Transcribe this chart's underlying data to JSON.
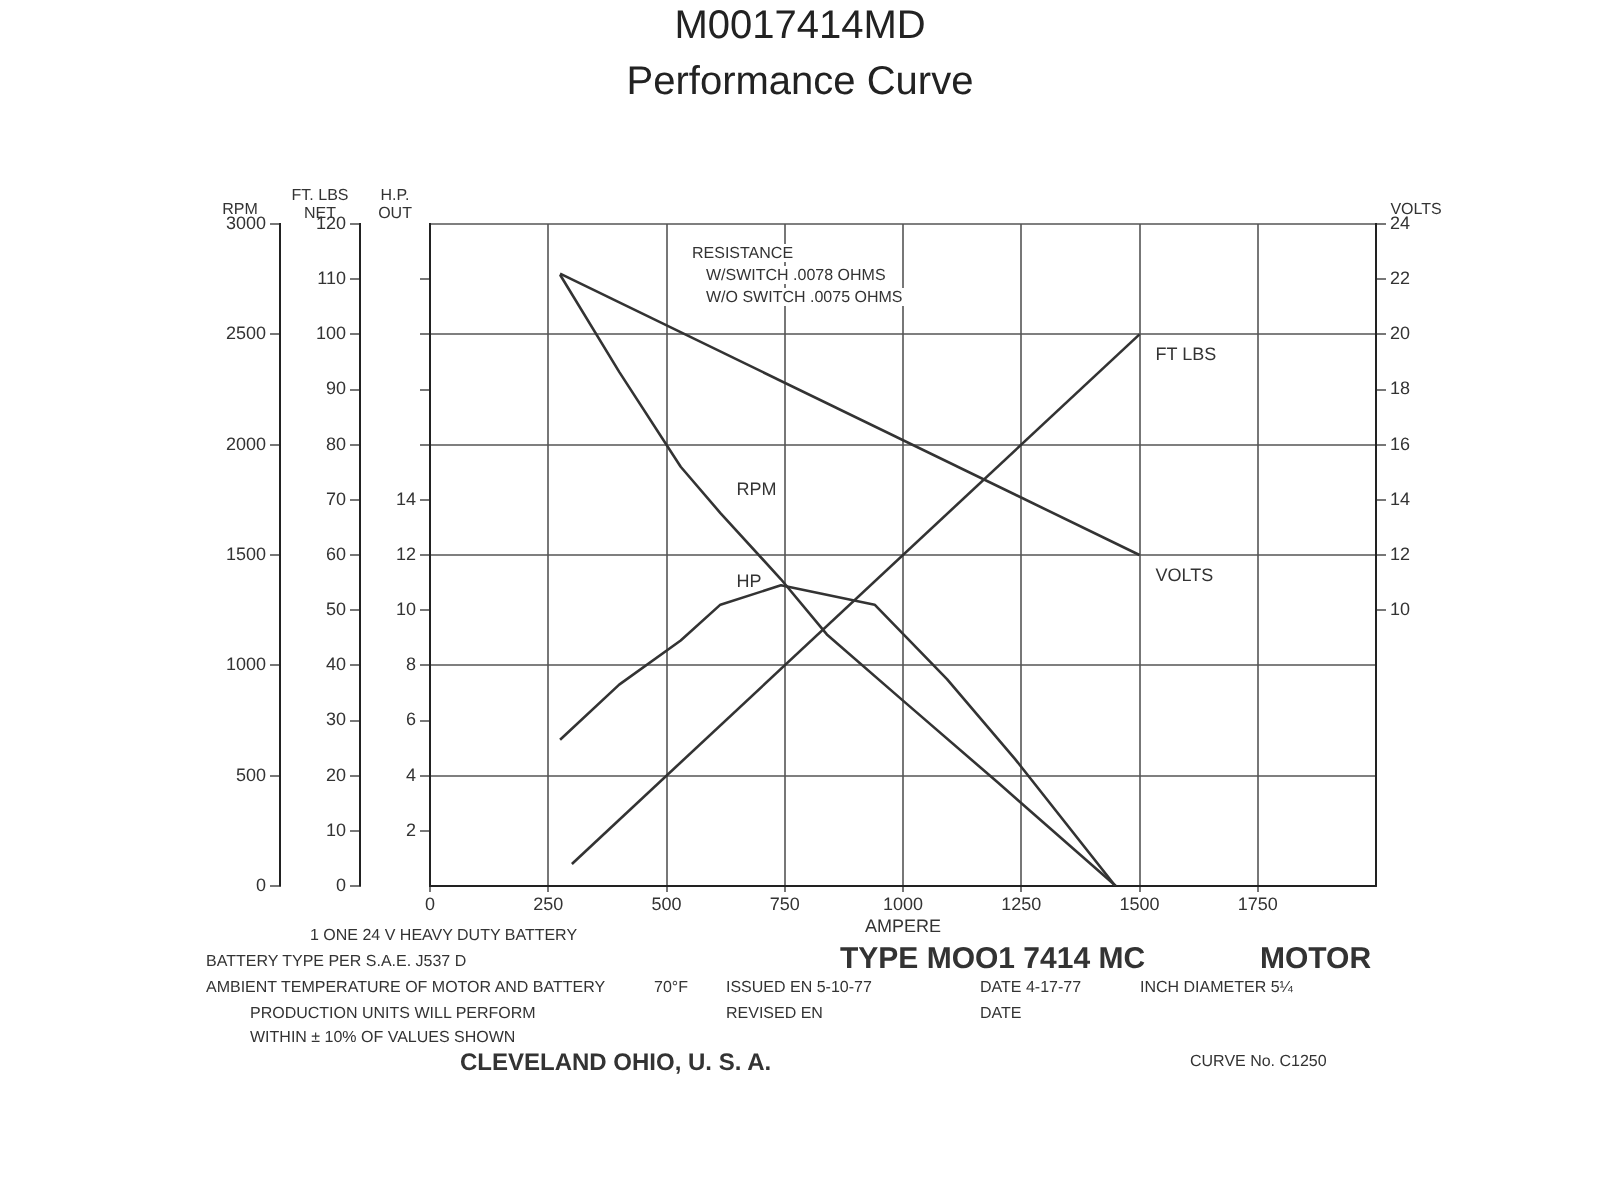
{
  "chart_data": [
    {
      "type": "line",
      "title": "M0017414MD",
      "subtitle": "Performance Curve",
      "xlabel": "AMPERE",
      "ylabel": "RPM",
      "y2label": "FT. LBS NET",
      "y3label": "H.P. OUT",
      "xlim": [
        0,
        2000
      ],
      "xticks": [
        0,
        250,
        500,
        750,
        1000,
        1250,
        1500,
        1750
      ],
      "ylim": [
        0,
        3000
      ],
      "yticks": [
        0,
        500,
        1000,
        1500,
        2000,
        2500,
        3000
      ],
      "y2lim": [
        0,
        120
      ],
      "y2ticks": [
        0,
        10,
        20,
        30,
        40,
        50,
        60,
        70,
        80,
        90,
        100,
        110,
        120
      ],
      "y3lim": [
        0,
        24
      ],
      "y3ticks": [
        2,
        4,
        6,
        8,
        10,
        12,
        14,
        {
          "value": 16,
          "label": null
        },
        {
          "value": 18,
          "label": null
        },
        {
          "value": 20,
          "label": null
        },
        {
          "value": 22,
          "label": null
        }
      ],
      "grid": true,
      "legend": false,
      "marker": "none",
      "line_style": "solid",
      "series": [
        {
          "name": "RPM",
          "color": "#333333",
          "x": [
            275,
            400,
            530,
            614,
            742,
            839,
            1000,
            1200,
            1450
          ],
          "values": [
            2770,
            2330,
            1900,
            1690,
            1390,
            1140,
            840,
            470,
            0
          ]
        },
        {
          "name": "HP",
          "color": "#333333",
          "axis": "y3",
          "x": [
            275,
            400,
            530,
            614,
            742,
            940,
            1093,
            1237,
            1449
          ],
          "values": [
            5.3,
            7.3,
            8.9,
            10.2,
            10.9,
            10.2,
            7.5,
            4.6,
            0
          ]
        },
        {
          "name": "FT LBS",
          "color": "#333333",
          "axis": "y2",
          "x": [
            300,
            1500
          ],
          "values": [
            4,
            100
          ]
        }
      ],
      "annotations": [
        "RESISTANCE",
        "W/SWITCH .0078 OHMS",
        "W/O SWITCH .0075 OHMS",
        "1 ONE 24 V HEAVY DUTY BATTERY",
        "BATTERY TYPE PER S.A.E. J537 D",
        "AMBIENT TEMPERATURE OF MOTOR AND BATTERY",
        "70°F",
        "ISSUED EN 5-10-77",
        "REVISED EN",
        "TYPE MOO1 7414 MC",
        "MOTOR",
        "DATE 4-17-77",
        "INCH DIAMETER 5¼",
        "DATE",
        "PRODUCTION UNITS WILL PERFORM",
        "WITHIN ± 10% OF VALUES SHOWN",
        "CLEVELAND OHIO, U. S. A.",
        "CURVE No. C1250"
      ]
    },
    {
      "type": "line",
      "ylabel": "VOLTS",
      "xlim": [
        0,
        2000
      ],
      "ylim": [
        0,
        24
      ],
      "yticks": [
        10,
        12,
        14,
        16,
        18,
        20,
        22,
        24
      ],
      "tick_labels": "y",
      "legend": false,
      "marker": "none",
      "line_style": "solid",
      "series": [
        {
          "name": "VOLTS",
          "color": "#333333",
          "x": [
            275,
            1500
          ],
          "values": [
            22.2,
            12
          ]
        }
      ]
    }
  ]
}
